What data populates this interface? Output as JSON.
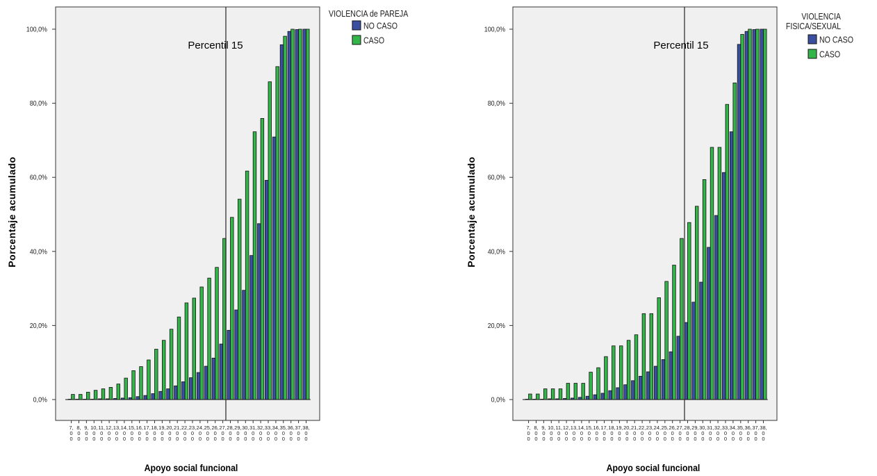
{
  "charts": [
    {
      "legend": {
        "title_lines": [
          "VIOLENCIA de PAREJA"
        ],
        "items": [
          "NO CASO",
          "CASO"
        ]
      },
      "annotation": "Percentil 15"
    },
    {
      "legend": {
        "title_lines": [
          "VIOLENCIA",
          "FISICA/SEXUAL"
        ],
        "items": [
          "NO CASO",
          "CASO"
        ]
      },
      "annotation": "Percentil 15"
    }
  ],
  "chart_data": [
    {
      "type": "bar",
      "xlabel": "Apoyo social funcional",
      "ylabel": "Porcentaje acumulado",
      "categories": [
        "7,00",
        "8,00",
        "9,00",
        "10,00",
        "11,00",
        "12,00",
        "13,00",
        "14,00",
        "15,00",
        "16,00",
        "17,00",
        "18,00",
        "19,00",
        "20,00",
        "21,00",
        "22,00",
        "23,00",
        "24,00",
        "25,00",
        "26,00",
        "27,00",
        "28,00",
        "29,00",
        "30,00",
        "31,00",
        "32,00",
        "33,00",
        "34,00",
        "35,00",
        "36,00",
        "37,00",
        "38,00"
      ],
      "ylim": [
        0,
        100
      ],
      "yticks": [
        "0,0%",
        "20,0%",
        "40,0%",
        "60,0%",
        "80,0%",
        "100,0%"
      ],
      "reference_line_x": "27,00",
      "series": [
        {
          "name": "NO CASO",
          "color": "#3b4fa0",
          "values": [
            0.1,
            0.1,
            0.1,
            0.1,
            0.2,
            0.2,
            0.3,
            0.4,
            0.5,
            0.8,
            1.1,
            1.6,
            2.2,
            2.9,
            3.7,
            4.8,
            5.9,
            7.3,
            9.0,
            11.2,
            15.0,
            18.7,
            24.2,
            29.5,
            38.9,
            47.5,
            59.2,
            70.9,
            95.8,
            99.4,
            99.9,
            100.0
          ]
        },
        {
          "name": "CASO",
          "color": "#33b54a",
          "values": [
            1.4,
            1.4,
            2.0,
            2.5,
            2.9,
            3.3,
            4.2,
            5.8,
            7.8,
            8.9,
            10.7,
            13.6,
            16.0,
            19.0,
            22.3,
            26.1,
            27.4,
            30.4,
            32.8,
            35.7,
            43.5,
            49.2,
            54.1,
            61.7,
            72.3,
            75.9,
            85.8,
            89.9,
            98.1,
            100.0,
            100.0,
            100.0
          ]
        }
      ]
    },
    {
      "type": "bar",
      "xlabel": "Apoyo social funcional",
      "ylabel": "Porcentaje acumulado",
      "categories": [
        "7,00",
        "8,00",
        "9,00",
        "10,00",
        "11,00",
        "12,00",
        "13,00",
        "14,00",
        "15,00",
        "16,00",
        "17,00",
        "18,00",
        "19,00",
        "20,00",
        "21,00",
        "22,00",
        "23,00",
        "24,00",
        "25,00",
        "26,00",
        "27,00",
        "28,00",
        "29,00",
        "30,00",
        "31,00",
        "32,00",
        "33,00",
        "34,00",
        "35,00",
        "36,00",
        "37,00",
        "38,00"
      ],
      "ylim": [
        0,
        100
      ],
      "yticks": [
        "0,0%",
        "20,0%",
        "40,0%",
        "60,0%",
        "80,0%",
        "100,0%"
      ],
      "reference_line_x": "27,00",
      "series": [
        {
          "name": "NO CASO",
          "color": "#3b4fa0",
          "values": [
            0.1,
            0.1,
            0.1,
            0.2,
            0.2,
            0.3,
            0.4,
            0.6,
            0.9,
            1.3,
            1.7,
            2.4,
            3.2,
            4.0,
            5.1,
            6.3,
            7.5,
            9.0,
            10.8,
            12.9,
            17.1,
            20.8,
            26.3,
            31.7,
            41.1,
            49.7,
            61.3,
            72.3,
            95.9,
            99.4,
            99.9,
            100.0
          ]
        },
        {
          "name": "CASO",
          "color": "#33b54a",
          "values": [
            1.5,
            1.5,
            2.9,
            2.9,
            2.9,
            4.4,
            4.4,
            4.4,
            7.4,
            8.6,
            11.6,
            14.5,
            14.5,
            16.0,
            17.5,
            23.2,
            23.2,
            27.5,
            31.9,
            36.3,
            43.5,
            47.8,
            52.2,
            59.4,
            68.1,
            68.1,
            79.7,
            85.5,
            98.6,
            100.0,
            100.0,
            100.0
          ]
        }
      ]
    }
  ]
}
